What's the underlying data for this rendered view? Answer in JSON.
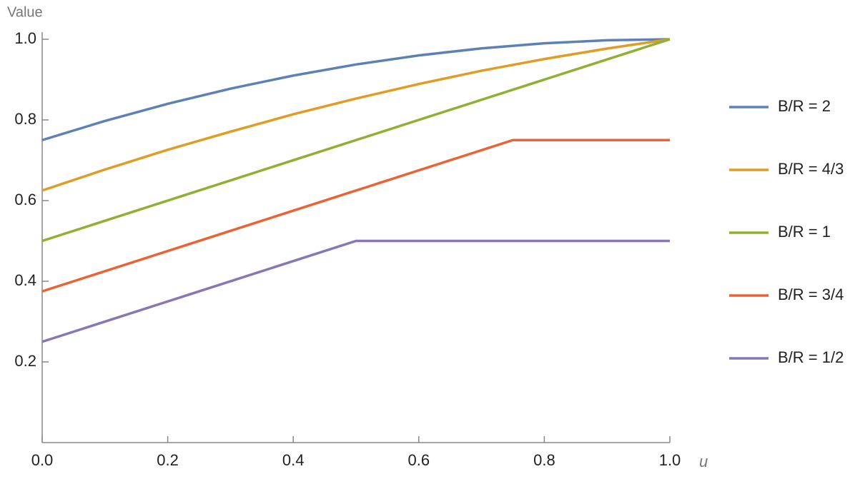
{
  "chart_data": {
    "type": "line",
    "x_label": "u",
    "y_label": "Value",
    "xlim": [
      0,
      1
    ],
    "ylim": [
      0,
      1
    ],
    "xticks": [
      {
        "value": 0,
        "label": "0.0"
      },
      0.2,
      0.4,
      0.6,
      0.8,
      {
        "value": 1,
        "label": "1.0"
      }
    ],
    "yticks": [
      0.2,
      0.4,
      0.6,
      0.8,
      {
        "value": 1,
        "label": "1.0"
      }
    ],
    "series": [
      {
        "name": "B/R = 2",
        "color": "#5e81b5",
        "x": [
          0,
          0.1,
          0.2,
          0.3,
          0.4,
          0.5,
          0.6,
          0.7,
          0.8,
          0.9,
          1
        ],
        "values": [
          0.75,
          0.7975,
          0.84,
          0.8775,
          0.91,
          0.9375,
          0.96,
          0.9775,
          0.99,
          0.9975,
          1
        ]
      },
      {
        "name": "B/R = 4/3",
        "color": "#e19c24",
        "x": [
          0,
          0.1,
          0.2,
          0.3,
          0.4,
          0.5,
          0.6,
          0.7,
          0.8,
          0.9,
          1
        ],
        "values": [
          0.625,
          0.677,
          0.726,
          0.771,
          0.814,
          0.853,
          0.889,
          0.922,
          0.951,
          0.977,
          1
        ]
      },
      {
        "name": "B/R = 1",
        "color": "#8fb032",
        "x": [
          0,
          1
        ],
        "values": [
          0.5,
          1
        ]
      },
      {
        "name": "B/R = 3/4",
        "color": "#eb6235",
        "x": [
          0,
          0.75,
          1
        ],
        "values": [
          0.375,
          0.75,
          0.75
        ]
      },
      {
        "name": "B/R = 1/2",
        "color": "#8778b3",
        "x": [
          0,
          0.5,
          1
        ],
        "values": [
          0.25,
          0.5,
          0.5
        ]
      }
    ]
  }
}
